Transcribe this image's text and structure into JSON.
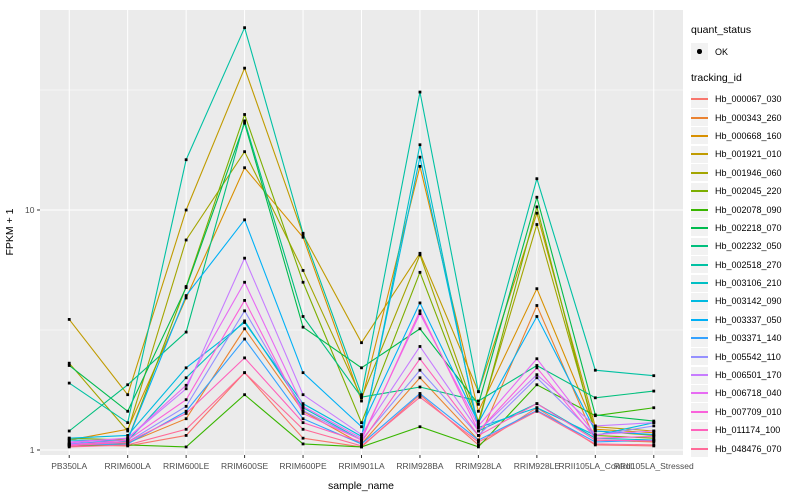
{
  "figure": {
    "background": "#FFFFFF",
    "panel_background": "#EBEBEB",
    "grid_color": "#FFFFFF",
    "tick_color": "#333333",
    "tick_label_color": "#4D4D4D",
    "point_color": "#000000",
    "legend_key_background": "#F2F2F2"
  },
  "axes": {
    "y_ticks": [
      {
        "label": "10",
        "value": 10
      },
      {
        "label": "1",
        "value": 1
      }
    ],
    "y_minor_values": [
      3.1623,
      31.6228
    ]
  },
  "legend": {
    "quant_status_title": "quant_status",
    "quant_status_value": "OK",
    "tracking_title": "tracking_id"
  },
  "chart_data": {
    "type": "line",
    "title": "",
    "xlabel": "sample_name",
    "ylabel": "FPKM + 1",
    "y_scale": "log10",
    "ylim": [
      1,
      68
    ],
    "grid": true,
    "legend_position": "right",
    "point_marker": "small black square on every data point (quant_status = OK)",
    "categories": [
      "PB350LA",
      "RRIM600LA",
      "RRIM600LE",
      "RRIM600SE",
      "RRIM600PE",
      "RRIM901LA",
      "RRIM928BA",
      "RRIM928LA",
      "RRIM928LE",
      "RRII105LA_Control",
      "RRII105LA_Stressed"
    ],
    "series": [
      {
        "name": "Hb_000067_030",
        "color": "#F8766D",
        "values": [
          1.05,
          1.04,
          1.15,
          2.1,
          1.12,
          1.03,
          1.7,
          1.05,
          1.5,
          1.05,
          1.04
        ]
      },
      {
        "name": "Hb_000343_260",
        "color": "#EA8331",
        "values": [
          1.06,
          1.07,
          1.35,
          3.2,
          1.45,
          1.06,
          2.0,
          1.1,
          4.0,
          1.1,
          1.08
        ]
      },
      {
        "name": "Hb_000668_160",
        "color": "#D89000",
        "values": [
          1.1,
          1.22,
          4.3,
          15.0,
          7.7,
          1.6,
          15.2,
          1.45,
          4.7,
          1.22,
          1.18
        ]
      },
      {
        "name": "Hb_001921_010",
        "color": "#C09B00",
        "values": [
          3.5,
          1.7,
          10.0,
          39.0,
          7.9,
          2.8,
          6.6,
          1.75,
          9.7,
          1.25,
          1.2
        ]
      },
      {
        "name": "Hb_001946_060",
        "color": "#A3A500",
        "values": [
          2.3,
          1.2,
          7.5,
          17.5,
          5.6,
          1.65,
          6.5,
          1.32,
          8.7,
          1.2,
          1.15
        ]
      },
      {
        "name": "Hb_002045_220",
        "color": "#7CAE00",
        "values": [
          1.12,
          1.1,
          4.8,
          25.0,
          5.0,
          1.3,
          5.5,
          1.28,
          10.3,
          1.15,
          1.12
        ]
      },
      {
        "name": "Hb_002078_090",
        "color": "#39B600",
        "values": [
          1.04,
          1.05,
          1.03,
          1.7,
          1.06,
          1.03,
          1.25,
          1.03,
          1.87,
          1.39,
          1.5
        ]
      },
      {
        "name": "Hb_002218_070",
        "color": "#00BB4E",
        "values": [
          2.25,
          1.45,
          4.75,
          23.0,
          3.25,
          2.2,
          3.2,
          1.55,
          11.3,
          1.4,
          1.32
        ]
      },
      {
        "name": "Hb_002232_050",
        "color": "#00BF7D",
        "values": [
          1.2,
          1.87,
          3.1,
          23.5,
          3.6,
          1.66,
          1.83,
          1.6,
          2.25,
          1.65,
          1.76
        ]
      },
      {
        "name": "Hb_002518_270",
        "color": "#00C1A3",
        "values": [
          1.9,
          1.3,
          16.2,
          57.5,
          8.0,
          1.7,
          31.0,
          1.75,
          13.5,
          2.15,
          2.04
        ]
      },
      {
        "name": "Hb_003106_210",
        "color": "#00BFC4",
        "values": [
          1.1,
          1.09,
          2.0,
          3.45,
          1.5,
          1.1,
          18.7,
          1.2,
          1.56,
          1.12,
          1.1
        ]
      },
      {
        "name": "Hb_003142_090",
        "color": "#00BAE0",
        "values": [
          1.12,
          1.15,
          2.2,
          3.4,
          1.56,
          1.14,
          16.6,
          1.24,
          1.5,
          1.15,
          1.3
        ]
      },
      {
        "name": "Hb_003337_050",
        "color": "#00B0F6",
        "values": [
          1.06,
          1.1,
          4.4,
          9.1,
          2.1,
          1.25,
          4.1,
          1.3,
          3.6,
          1.2,
          1.16
        ]
      },
      {
        "name": "Hb_003371_140",
        "color": "#35A2FF",
        "values": [
          1.05,
          1.06,
          1.45,
          2.9,
          1.35,
          1.06,
          1.72,
          1.1,
          1.46,
          1.08,
          1.1
        ]
      },
      {
        "name": "Hb_005542_110",
        "color": "#9590FF",
        "values": [
          1.06,
          1.08,
          1.52,
          3.8,
          1.46,
          1.1,
          2.15,
          1.15,
          2.0,
          1.15,
          1.26
        ]
      },
      {
        "name": "Hb_006501_170",
        "color": "#C77CFF",
        "values": [
          1.08,
          1.12,
          1.8,
          6.3,
          1.7,
          1.16,
          2.7,
          1.2,
          2.06,
          1.26,
          1.3
        ]
      },
      {
        "name": "Hb_006718_040",
        "color": "#E76BF3",
        "values": [
          1.07,
          1.12,
          1.86,
          5.0,
          1.52,
          1.12,
          3.7,
          1.26,
          2.4,
          1.16,
          1.2
        ]
      },
      {
        "name": "Hb_007709_010",
        "color": "#FA62DB",
        "values": [
          1.05,
          1.1,
          1.62,
          4.2,
          1.42,
          1.1,
          3.8,
          1.2,
          2.2,
          1.12,
          1.14
        ]
      },
      {
        "name": "Hb_011174_100",
        "color": "#FF62BC",
        "values": [
          1.04,
          1.08,
          1.42,
          2.42,
          1.3,
          1.08,
          2.4,
          1.15,
          1.56,
          1.1,
          1.09
        ]
      },
      {
        "name": "Hb_048476_070",
        "color": "#FF6A98",
        "values": [
          1.03,
          1.05,
          1.22,
          2.1,
          1.22,
          1.04,
          1.66,
          1.08,
          1.45,
          1.06,
          1.05
        ]
      }
    ]
  }
}
